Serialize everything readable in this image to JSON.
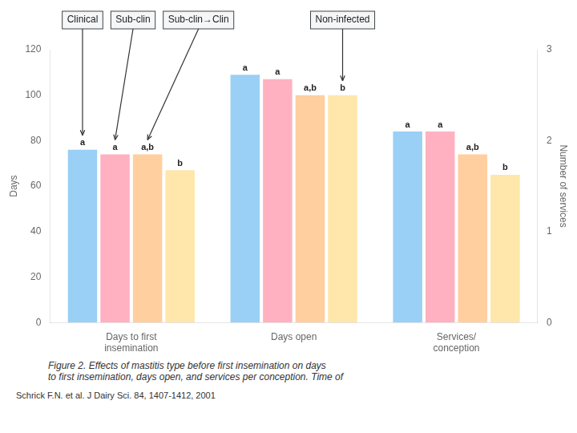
{
  "chart_data": {
    "type": "bar",
    "categories": [
      "Days to first\ninsemination",
      "Days open",
      "Services/\nconception"
    ],
    "series": [
      {
        "name": "Clinical",
        "values": [
          76,
          109,
          84
        ],
        "value_labels": [
          "a",
          "a",
          "a"
        ]
      },
      {
        "name": "Sub-clin",
        "values": [
          74,
          107,
          84
        ],
        "value_labels": [
          "a",
          "a",
          "a"
        ]
      },
      {
        "name": "Sub-clin→Clin",
        "values": [
          74,
          100,
          74
        ],
        "value_labels": [
          "a,b",
          "a,b",
          "a,b"
        ]
      },
      {
        "name": "Non-infected",
        "values": [
          67,
          100,
          65
        ],
        "value_labels": [
          "b",
          "b",
          "b"
        ]
      }
    ],
    "ylabel": "Days",
    "y2label": "Number of services",
    "ylim": [
      0,
      120
    ],
    "yticks": [
      0,
      20,
      40,
      60,
      80,
      100,
      120
    ],
    "y2lim": [
      0,
      3
    ],
    "y2ticks": [
      0,
      1,
      2,
      3
    ],
    "grid": false,
    "data_labels": true,
    "annotations": [
      {
        "text": "Clinical",
        "series": "Clinical",
        "category": "Days to first\ninsemination"
      },
      {
        "text": "Sub-clin",
        "series": "Sub-clin",
        "category": "Days to first\ninsemination"
      },
      {
        "text": "Sub-clin→Clin",
        "series": "Sub-clin→Clin",
        "category": "Days to first\ninsemination"
      },
      {
        "text": "Non-infected",
        "series": "Non-infected",
        "category": "Days open"
      }
    ],
    "caption": "Figure 2. Effects of mastitis type before first insemination on days\nto first insemination, days open, and services per conception. Time of",
    "source": "Schrick F.N. et al. J Dairy Sci. 84, 1407-1412, 2001"
  }
}
